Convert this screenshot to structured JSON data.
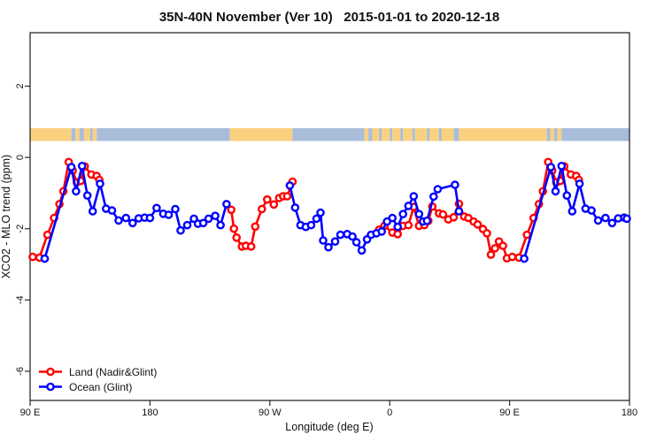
{
  "chart_data": {
    "type": "line",
    "title": "35N-40N November (Ver 10)   2015-01-01 to 2020-12-18",
    "xlabel": "Longitude (deg E)",
    "ylabel": "XCO2 - MLO trend (ppm)",
    "xlim": [
      90,
      540
    ],
    "ylim": [
      -6.82,
      3.5
    ],
    "grid": false,
    "axis_color": "#2b2b2b",
    "x_ticks": [
      {
        "value": 90,
        "label": "90 E"
      },
      {
        "value": 180,
        "label": "180"
      },
      {
        "value": 270,
        "label": "90 W"
      },
      {
        "value": 360,
        "label": "0"
      },
      {
        "value": 450,
        "label": "90 E"
      },
      {
        "value": 540,
        "label": "180"
      }
    ],
    "x_axis_note": "longitude wraps eastward: 90E to 180, 90W, 0, 90E, 180",
    "y_ticks": [
      {
        "value": 2,
        "label": "2"
      },
      {
        "value": 0,
        "label": "0"
      },
      {
        "value": -2,
        "label": "-2"
      },
      {
        "value": -4,
        "label": "-4"
      },
      {
        "value": -6,
        "label": "-6"
      }
    ],
    "legend": {
      "position": "bottom-left-inside"
    },
    "land_ocean_strip": {
      "y_top_value": 0.82,
      "y_bottom_value": 0.46,
      "land_color": "#FAD17F",
      "ocean_color": "#A9BDDB",
      "segments": [
        [
          90,
          121,
          "land"
        ],
        [
          121,
          124,
          "ocean"
        ],
        [
          124,
          127,
          "land"
        ],
        [
          127,
          130.5,
          "ocean"
        ],
        [
          130.5,
          135,
          "land"
        ],
        [
          135,
          137,
          "ocean"
        ],
        [
          137,
          140,
          "land"
        ],
        [
          140,
          240,
          "ocean"
        ],
        [
          240,
          287,
          "land"
        ],
        [
          287,
          341,
          "ocean"
        ],
        [
          341,
          344,
          "land"
        ],
        [
          344,
          347,
          "ocean"
        ],
        [
          347,
          352,
          "land"
        ],
        [
          352,
          354,
          "ocean"
        ],
        [
          354,
          360,
          "land"
        ],
        [
          360,
          362,
          "ocean"
        ],
        [
          362,
          368,
          "land"
        ],
        [
          368,
          370,
          "ocean"
        ],
        [
          370,
          377,
          "land"
        ],
        [
          377,
          379,
          "ocean"
        ],
        [
          379,
          388,
          "land"
        ],
        [
          388,
          390,
          "ocean"
        ],
        [
          390,
          397,
          "land"
        ],
        [
          397,
          399,
          "ocean"
        ],
        [
          399,
          408,
          "land"
        ],
        [
          408,
          412,
          "ocean"
        ],
        [
          412,
          478,
          "land"
        ],
        [
          478,
          480.5,
          "ocean"
        ],
        [
          480.5,
          483.5,
          "land"
        ],
        [
          483.5,
          486,
          "ocean"
        ],
        [
          486,
          489,
          "land"
        ],
        [
          489,
          540,
          "ocean"
        ]
      ]
    },
    "series": [
      {
        "name": "Land (Nadir&Glint)",
        "color": "#FF0000",
        "marker": "open-circle",
        "segments": [
          [
            [
              92,
              -2.79
            ],
            [
              97,
              -2.81
            ],
            [
              103,
              -2.17
            ],
            [
              108,
              -1.7
            ],
            [
              112,
              -1.31
            ],
            [
              115,
              -0.95
            ],
            [
              119,
              -0.13
            ],
            [
              122,
              -0.37
            ],
            [
              125,
              -0.7
            ],
            [
              128,
              -0.66
            ],
            [
              131,
              -0.25
            ],
            [
              136,
              -0.48
            ],
            [
              140,
              -0.52
            ],
            [
              142,
              -0.63
            ]
          ],
          [
            [
              241,
              -1.47
            ],
            [
              243,
              -2.0
            ],
            [
              245,
              -2.25
            ],
            [
              249,
              -2.5
            ],
            [
              252,
              -2.48
            ],
            [
              256,
              -2.5
            ],
            [
              259,
              -1.94
            ],
            [
              264,
              -1.45
            ],
            [
              268,
              -1.18
            ],
            [
              273,
              -1.32
            ],
            [
              277,
              -1.14
            ],
            [
              280,
              -1.09
            ],
            [
              283,
              -1.09
            ],
            [
              287,
              -0.68
            ]
          ],
          [
            [
              352,
              -2.03
            ],
            [
              356,
              -1.92
            ],
            [
              362,
              -2.11
            ],
            [
              366,
              -2.15
            ],
            [
              370,
              -1.92
            ],
            [
              374,
              -1.9
            ],
            [
              378,
              -1.39
            ],
            [
              382,
              -1.92
            ],
            [
              386,
              -1.9
            ],
            [
              389,
              -1.78
            ],
            [
              392,
              -1.38
            ],
            [
              397,
              -1.57
            ],
            [
              400,
              -1.6
            ],
            [
              404,
              -1.74
            ],
            [
              408,
              -1.68
            ],
            [
              412,
              -1.3
            ],
            [
              416,
              -1.66
            ],
            [
              419,
              -1.7
            ],
            [
              423,
              -1.8
            ],
            [
              426,
              -1.88
            ],
            [
              430,
              -2.01
            ],
            [
              433,
              -2.13
            ],
            [
              436,
              -2.73
            ],
            [
              439,
              -2.55
            ],
            [
              442,
              -2.36
            ],
            [
              445,
              -2.48
            ],
            [
              448,
              -2.83
            ],
            [
              452,
              -2.79
            ],
            [
              457,
              -2.81
            ],
            [
              463,
              -2.17
            ],
            [
              468,
              -1.7
            ],
            [
              472,
              -1.31
            ],
            [
              475,
              -0.95
            ],
            [
              479,
              -0.13
            ],
            [
              482,
              -0.37
            ],
            [
              485,
              -0.7
            ],
            [
              488,
              -0.66
            ],
            [
              491,
              -0.25
            ],
            [
              496,
              -0.48
            ],
            [
              500,
              -0.52
            ],
            [
              502,
              -0.63
            ]
          ]
        ]
      },
      {
        "name": "Ocean (Glint)",
        "color": "#0000FF",
        "marker": "open-circle",
        "segments": [
          [
            [
              101,
              -2.84
            ],
            [
              121,
              -0.27
            ],
            [
              124.5,
              -0.95
            ],
            [
              129,
              -0.24
            ],
            [
              133,
              -1.07
            ],
            [
              137,
              -1.51
            ],
            [
              142.5,
              -0.74
            ],
            [
              147,
              -1.44
            ],
            [
              151.5,
              -1.49
            ],
            [
              156.5,
              -1.77
            ],
            [
              162,
              -1.7
            ],
            [
              167,
              -1.84
            ],
            [
              171.5,
              -1.71
            ],
            [
              176,
              -1.69
            ],
            [
              180,
              -1.7
            ],
            [
              185,
              -1.42
            ],
            [
              190,
              -1.58
            ],
            [
              194,
              -1.61
            ],
            [
              199,
              -1.45
            ],
            [
              203,
              -2.05
            ],
            [
              208,
              -1.9
            ],
            [
              213,
              -1.72
            ],
            [
              216,
              -1.86
            ],
            [
              220,
              -1.84
            ],
            [
              224,
              -1.72
            ],
            [
              229,
              -1.64
            ],
            [
              233,
              -1.9
            ],
            [
              237.5,
              -1.31
            ]
          ],
          [
            [
              285,
              -0.79
            ],
            [
              289,
              -1.41
            ],
            [
              293,
              -1.9
            ],
            [
              297,
              -1.95
            ],
            [
              301,
              -1.9
            ],
            [
              305,
              -1.72
            ],
            [
              308,
              -1.55
            ],
            [
              310,
              -2.33
            ],
            [
              314,
              -2.52
            ],
            [
              319,
              -2.36
            ],
            [
              323,
              -2.17
            ],
            [
              328,
              -2.15
            ],
            [
              332,
              -2.22
            ],
            [
              335,
              -2.38
            ],
            [
              339,
              -2.61
            ],
            [
              343,
              -2.3
            ],
            [
              346,
              -2.17
            ],
            [
              350,
              -2.13
            ],
            [
              354,
              -2.08
            ],
            [
              358,
              -1.8
            ],
            [
              362,
              -1.7
            ],
            [
              366,
              -1.95
            ],
            [
              370,
              -1.59
            ],
            [
              374,
              -1.36
            ],
            [
              378,
              -1.09
            ],
            [
              382,
              -1.59
            ],
            [
              385,
              -1.8
            ],
            [
              388,
              -1.78
            ],
            [
              393,
              -1.1
            ],
            [
              396,
              -0.89
            ],
            [
              409,
              -0.77
            ],
            [
              412,
              -1.51
            ]
          ],
          [
            [
              461,
              -2.84
            ],
            [
              481,
              -0.27
            ],
            [
              484.5,
              -0.95
            ],
            [
              489,
              -0.24
            ],
            [
              493,
              -1.07
            ],
            [
              497,
              -1.51
            ],
            [
              502.5,
              -0.74
            ],
            [
              507,
              -1.44
            ],
            [
              511.5,
              -1.49
            ],
            [
              516.5,
              -1.77
            ],
            [
              522,
              -1.7
            ],
            [
              527,
              -1.84
            ],
            [
              531.5,
              -1.71
            ],
            [
              536,
              -1.69
            ],
            [
              538,
              -1.72
            ]
          ]
        ]
      }
    ]
  }
}
